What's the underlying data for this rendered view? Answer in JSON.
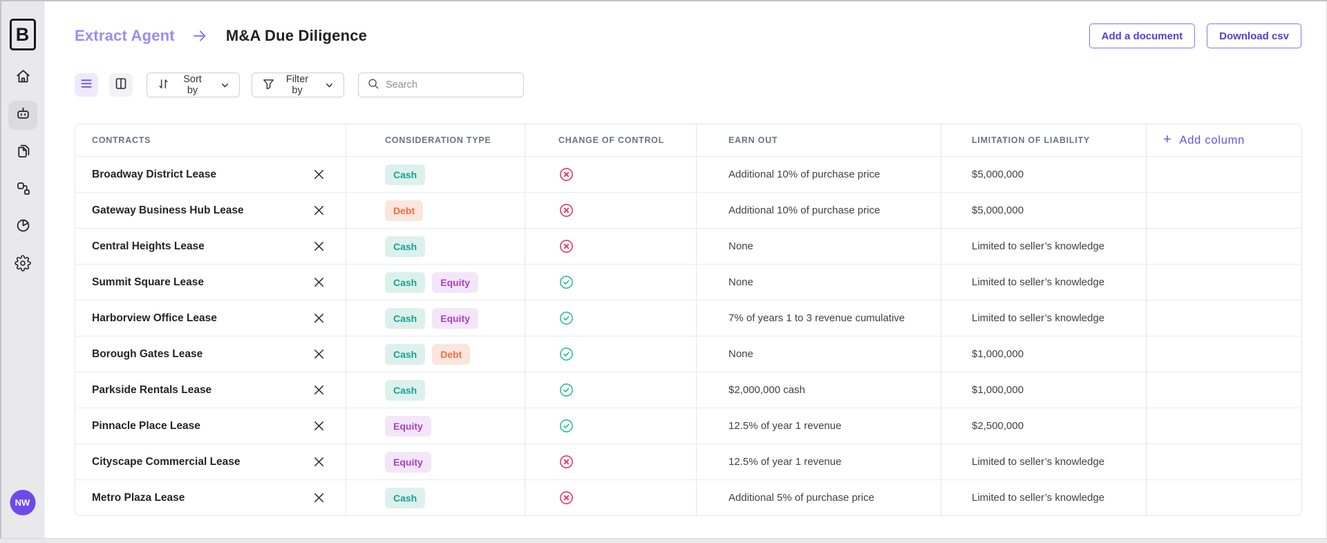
{
  "sidebar": {
    "logo_letter": "B",
    "nav": [
      {
        "icon": "home-icon",
        "active": false
      },
      {
        "icon": "robot-icon",
        "active": true
      },
      {
        "icon": "documents-icon",
        "active": false
      },
      {
        "icon": "workflow-icon",
        "active": false
      },
      {
        "icon": "pie-chart-icon",
        "active": false
      },
      {
        "icon": "gear-icon",
        "active": false
      }
    ],
    "avatar_initials": "NW"
  },
  "header": {
    "breadcrumb": "Extract Agent",
    "title": "M&A Due Diligence",
    "add_document_label": "Add a document",
    "download_csv_label": "Download csv"
  },
  "toolbar": {
    "sort_label": "Sort by",
    "filter_label": "Filter by",
    "search_placeholder": "Search"
  },
  "table": {
    "columns": [
      "CONTRACTS",
      "CONSIDERATION TYPE",
      "CHANGE OF CONTROL",
      "EARN OUT",
      "LIMITATION OF LIABILITY"
    ],
    "add_column_plus": "+",
    "add_column_label": "Add column",
    "rows": [
      {
        "contract": "Broadway District Lease",
        "consideration": [
          "Cash"
        ],
        "change_of_control": "denied",
        "earn_out": "Additional 10% of purchase price",
        "limitation_of_liability": "$5,000,000"
      },
      {
        "contract": "Gateway Business Hub Lease",
        "consideration": [
          "Debt"
        ],
        "change_of_control": "denied",
        "earn_out": "Additional 10% of purchase price",
        "limitation_of_liability": "$5,000,000"
      },
      {
        "contract": "Central Heights Lease",
        "consideration": [
          "Cash"
        ],
        "change_of_control": "denied",
        "earn_out": "None",
        "limitation_of_liability": "Limited to seller’s knowledge"
      },
      {
        "contract": "Summit Square Lease",
        "consideration": [
          "Cash",
          "Equity"
        ],
        "change_of_control": "approved",
        "earn_out": "None",
        "limitation_of_liability": "Limited to seller’s knowledge"
      },
      {
        "contract": "Harborview Office Lease",
        "consideration": [
          "Cash",
          "Equity"
        ],
        "change_of_control": "approved",
        "earn_out": "7% of years 1 to 3 revenue cumulative",
        "limitation_of_liability": "Limited to seller’s knowledge"
      },
      {
        "contract": "Borough Gates Lease",
        "consideration": [
          "Cash",
          "Debt"
        ],
        "change_of_control": "approved",
        "earn_out": "None",
        "limitation_of_liability": "$1,000,000"
      },
      {
        "contract": "Parkside Rentals Lease",
        "consideration": [
          "Cash"
        ],
        "change_of_control": "approved",
        "earn_out": "$2,000,000 cash",
        "limitation_of_liability": "$1,000,000"
      },
      {
        "contract": "Pinnacle Place Lease",
        "consideration": [
          "Equity"
        ],
        "change_of_control": "approved",
        "earn_out": "12.5% of year 1 revenue",
        "limitation_of_liability": "$2,500,000"
      },
      {
        "contract": "Cityscape Commercial Lease",
        "consideration": [
          "Equity"
        ],
        "change_of_control": "denied",
        "earn_out": "12.5% of year 1 revenue",
        "limitation_of_liability": "Limited to seller’s knowledge"
      },
      {
        "contract": "Metro Plaza Lease",
        "consideration": [
          "Cash"
        ],
        "change_of_control": "denied",
        "earn_out": "Additional 5% of purchase price",
        "limitation_of_liability": "Limited to seller’s knowledge"
      }
    ],
    "status_icons": {
      "approved": "check-circle-icon",
      "denied": "x-circle-icon"
    }
  },
  "colors": {
    "accent_purple": "#5240d4",
    "breadcrumb_purple": "#9b8cf4",
    "add_column_purple": "#6b50e8",
    "avatar_purple": "#6d4aeb",
    "cash_text": "#16a193",
    "cash_bg": "#ddf1ec",
    "debt_text": "#f26b40",
    "debt_bg": "#fbe5dc",
    "equity_text": "#a83fc9",
    "equity_bg": "#f4e6f9",
    "approved_green": "#2fc08e",
    "denied_red": "#e8395f",
    "sidebar_bg": "#e9e9ec"
  }
}
